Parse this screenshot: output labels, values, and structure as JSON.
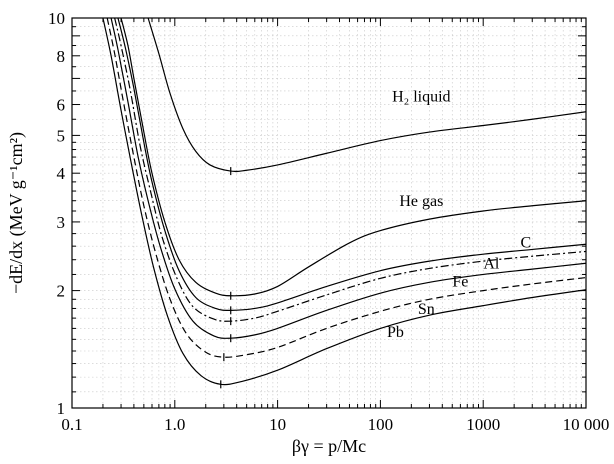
{
  "chart_data": {
    "type": "line",
    "xlabel": "βγ = p/Mc",
    "ylabel": "−dE/dx (MeV g⁻¹cm²)",
    "xscale": "log",
    "yscale": "log",
    "xlim": [
      0.1,
      10000
    ],
    "ylim": [
      1,
      10
    ],
    "grid": true,
    "x_ticks": [
      {
        "value": 0.1,
        "label": "0.1"
      },
      {
        "value": 1,
        "label": "1.0"
      },
      {
        "value": 10,
        "label": "10"
      },
      {
        "value": 100,
        "label": "100"
      },
      {
        "value": 1000,
        "label": "1000"
      },
      {
        "value": 10000,
        "label": "10 000"
      }
    ],
    "y_ticks": [
      {
        "value": 1,
        "label": "1"
      },
      {
        "value": 2,
        "label": "2"
      },
      {
        "value": 3,
        "label": "3"
      },
      {
        "value": 4,
        "label": "4"
      },
      {
        "value": 5,
        "label": "5"
      },
      {
        "value": 6,
        "label": "6"
      },
      {
        "value": 8,
        "label": "8"
      },
      {
        "value": 10,
        "label": "10"
      }
    ],
    "series": [
      {
        "name": "H₂ liquid",
        "dash": "solid",
        "points": [
          [
            0.55,
            10
          ],
          [
            0.7,
            8.1
          ],
          [
            0.9,
            6.4
          ],
          [
            1.2,
            5.2
          ],
          [
            1.6,
            4.55
          ],
          [
            2.2,
            4.2
          ],
          [
            3.5,
            4.05
          ],
          [
            5,
            4.07
          ],
          [
            10,
            4.2
          ],
          [
            30,
            4.5
          ],
          [
            100,
            4.85
          ],
          [
            300,
            5.1
          ],
          [
            1000,
            5.3
          ],
          [
            3000,
            5.5
          ],
          [
            10000,
            5.75
          ]
        ],
        "min_x": 3.5,
        "min_y": 4.05
      },
      {
        "name": "He gas",
        "dash": "solid",
        "points": [
          [
            0.3,
            10
          ],
          [
            0.35,
            8.5
          ],
          [
            0.4,
            7
          ],
          [
            0.5,
            5.1
          ],
          [
            0.6,
            4
          ],
          [
            0.8,
            3
          ],
          [
            1.1,
            2.4
          ],
          [
            1.6,
            2.1
          ],
          [
            2.5,
            1.97
          ],
          [
            3.5,
            1.94
          ],
          [
            6,
            1.96
          ],
          [
            10,
            2.05
          ],
          [
            20,
            2.3
          ],
          [
            50,
            2.65
          ],
          [
            100,
            2.85
          ],
          [
            300,
            3.05
          ],
          [
            1000,
            3.2
          ],
          [
            3000,
            3.3
          ],
          [
            10000,
            3.4
          ]
        ],
        "min_x": 3.5,
        "min_y": 1.94
      },
      {
        "name": "C",
        "dash": "solid",
        "points": [
          [
            0.28,
            10
          ],
          [
            0.33,
            8.4
          ],
          [
            0.4,
            6.6
          ],
          [
            0.5,
            4.8
          ],
          [
            0.6,
            3.8
          ],
          [
            0.8,
            2.85
          ],
          [
            1.1,
            2.25
          ],
          [
            1.6,
            1.92
          ],
          [
            2.5,
            1.8
          ],
          [
            3.5,
            1.78
          ],
          [
            6,
            1.8
          ],
          [
            10,
            1.86
          ],
          [
            30,
            2.05
          ],
          [
            100,
            2.25
          ],
          [
            300,
            2.38
          ],
          [
            1000,
            2.48
          ],
          [
            3000,
            2.55
          ],
          [
            10000,
            2.63
          ]
        ],
        "min_x": 3.5,
        "min_y": 1.78
      },
      {
        "name": "Al",
        "dash": "dashdot",
        "points": [
          [
            0.26,
            10
          ],
          [
            0.3,
            8.5
          ],
          [
            0.37,
            6.5
          ],
          [
            0.46,
            4.7
          ],
          [
            0.58,
            3.6
          ],
          [
            0.75,
            2.75
          ],
          [
            1.05,
            2.15
          ],
          [
            1.5,
            1.82
          ],
          [
            2.4,
            1.69
          ],
          [
            3.5,
            1.67
          ],
          [
            6,
            1.7
          ],
          [
            10,
            1.77
          ],
          [
            30,
            1.95
          ],
          [
            100,
            2.15
          ],
          [
            300,
            2.28
          ],
          [
            1000,
            2.38
          ],
          [
            3000,
            2.45
          ],
          [
            10000,
            2.52
          ]
        ],
        "min_x": 3.5,
        "min_y": 1.67
      },
      {
        "name": "Fe",
        "dash": "solid",
        "points": [
          [
            0.24,
            10
          ],
          [
            0.28,
            8.3
          ],
          [
            0.35,
            6.1
          ],
          [
            0.44,
            4.4
          ],
          [
            0.55,
            3.4
          ],
          [
            0.72,
            2.6
          ],
          [
            1,
            2.02
          ],
          [
            1.5,
            1.67
          ],
          [
            2.4,
            1.53
          ],
          [
            3.5,
            1.51
          ],
          [
            6,
            1.54
          ],
          [
            10,
            1.6
          ],
          [
            30,
            1.78
          ],
          [
            100,
            1.97
          ],
          [
            300,
            2.1
          ],
          [
            1000,
            2.2
          ],
          [
            3000,
            2.27
          ],
          [
            10000,
            2.35
          ]
        ],
        "min_x": 3.5,
        "min_y": 1.51
      },
      {
        "name": "Sn",
        "dash": "dashed",
        "points": [
          [
            0.22,
            10
          ],
          [
            0.26,
            8.1
          ],
          [
            0.32,
            6
          ],
          [
            0.4,
            4.4
          ],
          [
            0.5,
            3.3
          ],
          [
            0.65,
            2.5
          ],
          [
            0.9,
            1.9
          ],
          [
            1.3,
            1.55
          ],
          [
            2,
            1.39
          ],
          [
            3,
            1.35
          ],
          [
            5,
            1.37
          ],
          [
            10,
            1.43
          ],
          [
            30,
            1.6
          ],
          [
            100,
            1.77
          ],
          [
            300,
            1.9
          ],
          [
            1000,
            2
          ],
          [
            3000,
            2.08
          ],
          [
            10000,
            2.16
          ]
        ],
        "min_x": 3,
        "min_y": 1.35
      },
      {
        "name": "Pb",
        "dash": "solid",
        "points": [
          [
            0.2,
            10
          ],
          [
            0.24,
            8
          ],
          [
            0.3,
            5.8
          ],
          [
            0.38,
            4.2
          ],
          [
            0.48,
            3.1
          ],
          [
            0.62,
            2.3
          ],
          [
            0.85,
            1.72
          ],
          [
            1.2,
            1.38
          ],
          [
            1.8,
            1.21
          ],
          [
            2.8,
            1.15
          ],
          [
            4.5,
            1.17
          ],
          [
            10,
            1.25
          ],
          [
            30,
            1.42
          ],
          [
            100,
            1.6
          ],
          [
            300,
            1.73
          ],
          [
            1000,
            1.83
          ],
          [
            3000,
            1.92
          ],
          [
            10000,
            2.01
          ]
        ],
        "min_x": 2.8,
        "min_y": 1.15
      }
    ],
    "labels": [
      {
        "series": "H₂ liquid",
        "text": "H₂ liquid",
        "x": 250,
        "y": 6.1
      },
      {
        "series": "He gas",
        "text": "He gas",
        "x": 250,
        "y": 3.3
      },
      {
        "series": "C",
        "text": "C",
        "x": 2600,
        "y": 2.58
      },
      {
        "series": "Al",
        "text": "Al",
        "x": 1200,
        "y": 2.28
      },
      {
        "series": "Fe",
        "text": "Fe",
        "x": 600,
        "y": 2.05
      },
      {
        "series": "Sn",
        "text": "Sn",
        "x": 280,
        "y": 1.74
      },
      {
        "series": "Pb",
        "text": "Pb",
        "x": 140,
        "y": 1.52
      }
    ]
  }
}
